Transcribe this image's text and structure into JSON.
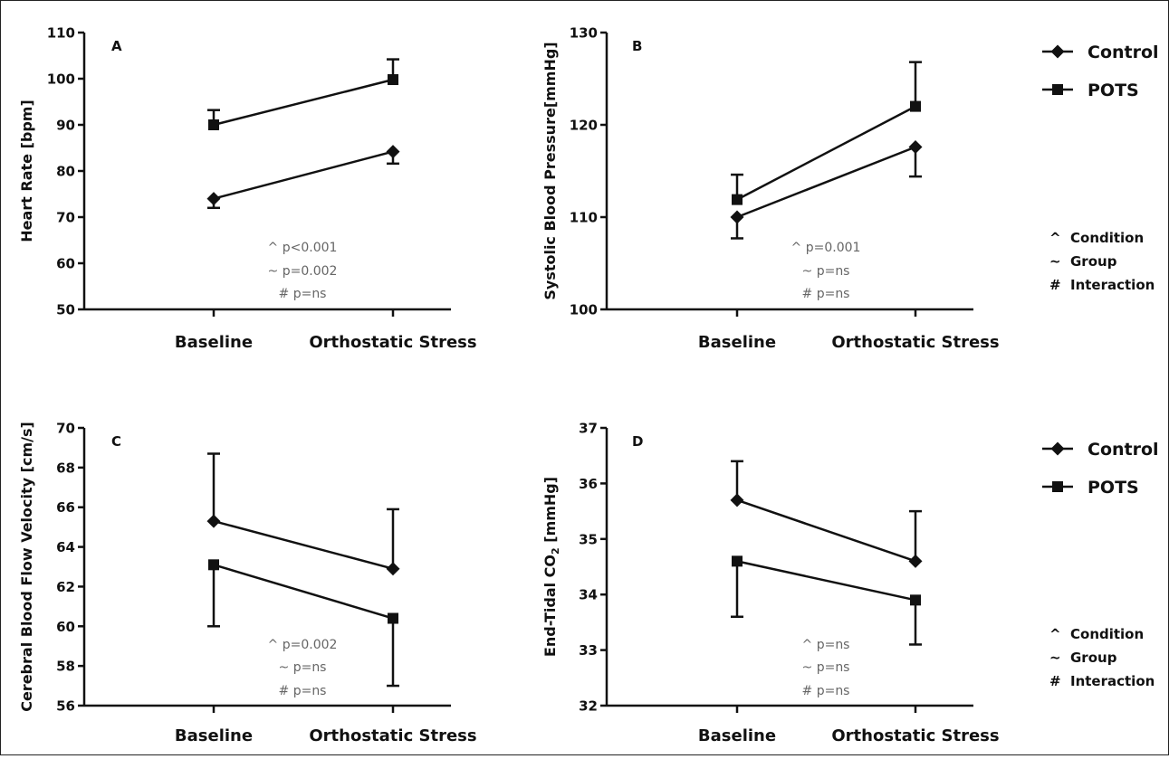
{
  "legend": {
    "series": [
      {
        "name": "Control",
        "marker": "diamond"
      },
      {
        "name": "POTS",
        "marker": "square"
      }
    ],
    "stat_key": [
      {
        "symbol": "^",
        "label": "Condition"
      },
      {
        "symbol": "~",
        "label": "Group"
      },
      {
        "symbol": "#",
        "label": "Interaction"
      }
    ]
  },
  "chart_data": [
    {
      "type": "line",
      "panel": "A",
      "ylabel": "Heart Rate [bpm]",
      "ylim": [
        50,
        110
      ],
      "yticks": [
        50,
        60,
        70,
        80,
        90,
        100,
        110
      ],
      "categories": [
        "Baseline",
        "Orthostatic Stress"
      ],
      "series": [
        {
          "name": "Control",
          "marker": "diamond",
          "values": [
            74,
            84.2
          ],
          "err_lo": [
            2,
            2.6
          ],
          "err_hi": [
            0,
            0
          ]
        },
        {
          "name": "POTS",
          "marker": "square",
          "values": [
            90,
            99.8
          ],
          "err_lo": [
            0,
            0
          ],
          "err_hi": [
            3.2,
            4.4
          ]
        }
      ],
      "stats": [
        "^ p<0.001",
        "~ p=0.002",
        "# p=ns"
      ]
    },
    {
      "type": "line",
      "panel": "B",
      "ylabel": "Systolic Blood Pressure[mmHg]",
      "ylim": [
        100,
        130
      ],
      "yticks": [
        100,
        110,
        120,
        130
      ],
      "categories": [
        "Baseline",
        "Orthostatic Stress"
      ],
      "series": [
        {
          "name": "Control",
          "marker": "diamond",
          "values": [
            110,
            117.6
          ],
          "err_lo": [
            2.3,
            3.2
          ],
          "err_hi": [
            0,
            0
          ]
        },
        {
          "name": "POTS",
          "marker": "square",
          "values": [
            111.9,
            122
          ],
          "err_lo": [
            0,
            0
          ],
          "err_hi": [
            2.7,
            4.8
          ]
        }
      ],
      "stats": [
        "^ p=0.001",
        "~ p=ns",
        "# p=ns"
      ]
    },
    {
      "type": "line",
      "panel": "C",
      "ylabel": "Cerebral Blood Flow Velocity [cm/s]",
      "ylim": [
        56,
        70
      ],
      "yticks": [
        56,
        58,
        60,
        62,
        64,
        66,
        68,
        70
      ],
      "categories": [
        "Baseline",
        "Orthostatic Stress"
      ],
      "series": [
        {
          "name": "Control",
          "marker": "diamond",
          "values": [
            65.3,
            62.9
          ],
          "err_lo": [
            0,
            0
          ],
          "err_hi": [
            3.4,
            3.0
          ]
        },
        {
          "name": "POTS",
          "marker": "square",
          "values": [
            63.1,
            60.4
          ],
          "err_lo": [
            3.1,
            3.4
          ],
          "err_hi": [
            0,
            0
          ]
        }
      ],
      "stats": [
        "^ p=0.002",
        "~ p=ns",
        "# p=ns"
      ]
    },
    {
      "type": "line",
      "panel": "D",
      "ylabel_main": "End-Tidal CO",
      "ylabel_sub": "2",
      "ylabel_tail": " [mmHg]",
      "ylim": [
        32,
        37
      ],
      "yticks": [
        32,
        33,
        34,
        35,
        36,
        37
      ],
      "categories": [
        "Baseline",
        "Orthostatic Stress"
      ],
      "series": [
        {
          "name": "Control",
          "marker": "diamond",
          "values": [
            35.7,
            34.6
          ],
          "err_lo": [
            0,
            0
          ],
          "err_hi": [
            0.7,
            0.9
          ]
        },
        {
          "name": "POTS",
          "marker": "square",
          "values": [
            34.6,
            33.9
          ],
          "err_lo": [
            1.0,
            0.8
          ],
          "err_hi": [
            0,
            0
          ]
        }
      ],
      "stats": [
        "^ p=ns",
        "~ p=ns",
        "# p=ns"
      ]
    }
  ]
}
